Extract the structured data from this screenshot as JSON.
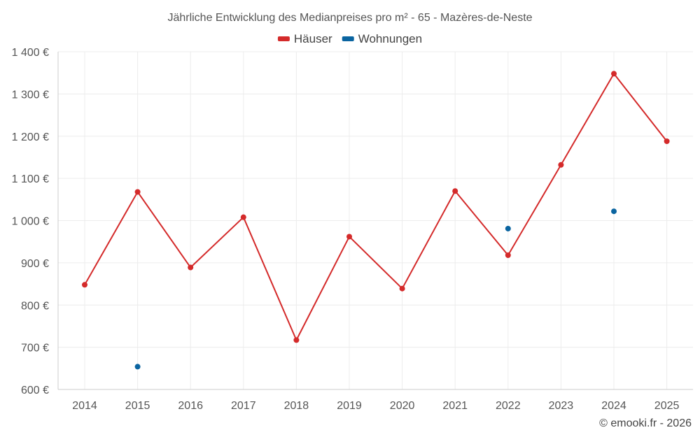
{
  "chart_data": {
    "type": "line",
    "title": "Jährliche Entwicklung des Medianpreises pro m² - 65 - Mazères-de-Neste",
    "xlabel": "",
    "ylabel": "",
    "categories": [
      "2014",
      "2015",
      "2016",
      "2017",
      "2018",
      "2019",
      "2020",
      "2021",
      "2022",
      "2023",
      "2024",
      "2025"
    ],
    "ylim": [
      600,
      1400
    ],
    "yticks": [
      600,
      700,
      800,
      900,
      1000,
      1100,
      1200,
      1300,
      1400
    ],
    "ytick_labels": [
      "600 €",
      "700 €",
      "800 €",
      "900 €",
      "1 000 €",
      "1 100 €",
      "1 200 €",
      "1 300 €",
      "1 400 €"
    ],
    "grid": true,
    "legend_position": "top-center",
    "series": [
      {
        "name": "Häuser",
        "color": "#d42a2a",
        "style": "line-markers",
        "values": [
          848,
          1068,
          889,
          1008,
          717,
          962,
          839,
          1070,
          918,
          1132,
          1348,
          1188
        ]
      },
      {
        "name": "Wohnungen",
        "color": "#0a64a0",
        "style": "markers",
        "values": [
          null,
          654,
          null,
          null,
          null,
          null,
          null,
          null,
          981,
          null,
          1022,
          null
        ]
      }
    ],
    "credit": "© emooki.fr - 2026"
  }
}
